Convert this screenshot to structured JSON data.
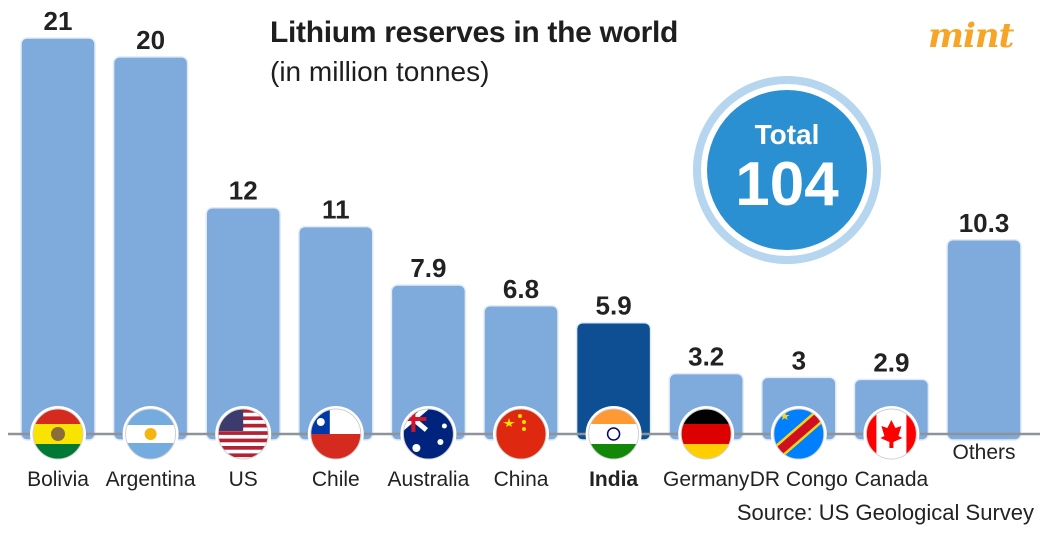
{
  "header": {
    "title": "Lithium reserves in the world",
    "subtitle": "(in million tonnes)",
    "brand": "mint"
  },
  "badge": {
    "label": "Total",
    "value": "104"
  },
  "source": "Source: US Geological Survey",
  "colors": {
    "bar": "#7faadc",
    "bar_highlight": "#0e4e92",
    "badge_fill": "#2a90d2",
    "badge_ring": "#b6d5ee",
    "brand": "#f7a526"
  },
  "chart_data": {
    "type": "bar",
    "categories": [
      "Bolivia",
      "Argentina",
      "US",
      "Chile",
      "Australia",
      "China",
      "India",
      "Germany",
      "DR Congo",
      "Canada",
      "Others"
    ],
    "values": [
      21,
      20,
      12,
      11,
      7.9,
      6.8,
      5.9,
      3.2,
      3,
      2.9,
      10.3
    ],
    "value_labels": [
      "21",
      "20",
      "12",
      "11",
      "7.9",
      "6.8",
      "5.9",
      "3.2",
      "3",
      "2.9",
      "10.3"
    ],
    "highlight": "India",
    "flags": [
      "bolivia-flag-icon",
      "argentina-flag-icon",
      "us-flag-icon",
      "chile-flag-icon",
      "australia-flag-icon",
      "china-flag-icon",
      "india-flag-icon",
      "germany-flag-icon",
      "dr-congo-flag-icon",
      "canada-flag-icon",
      ""
    ],
    "title": "Lithium reserves in the world",
    "ylabel": "(in million tonnes)",
    "ylim": [
      0,
      21
    ],
    "grid": false,
    "legend": "none"
  }
}
